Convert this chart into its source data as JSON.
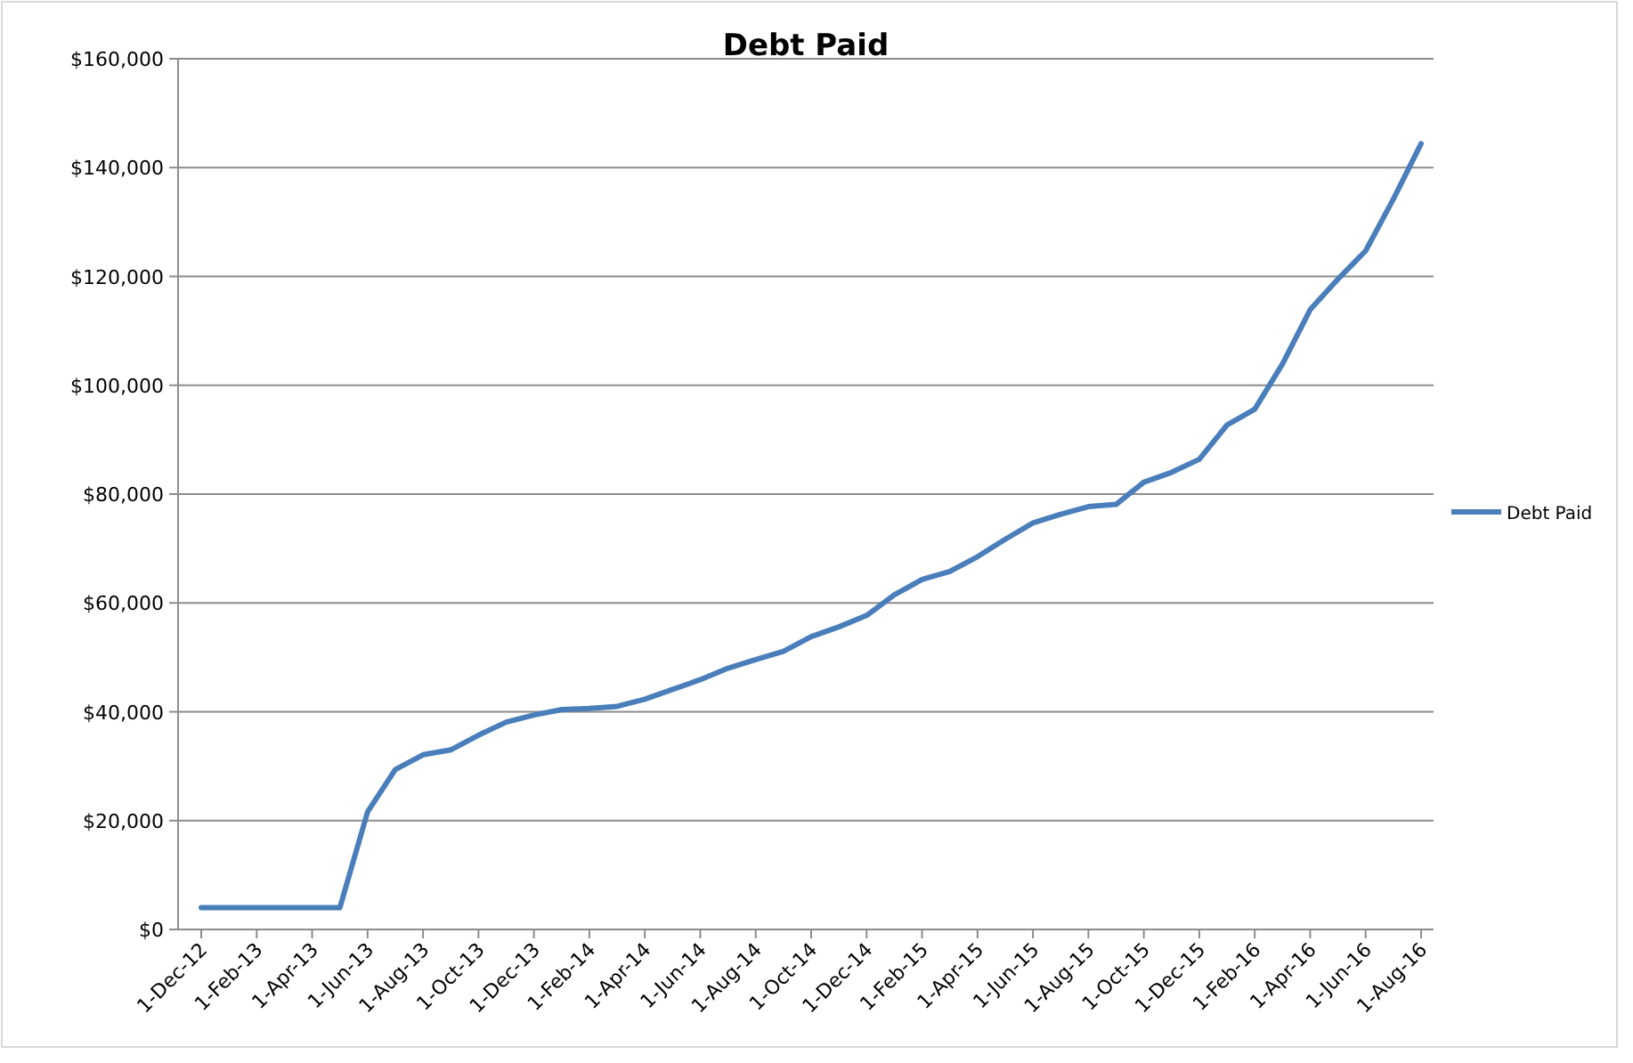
{
  "chart_data": {
    "type": "line",
    "title": "Debt Paid",
    "categories": [
      "1-Dec-12",
      null,
      "1-Feb-13",
      null,
      "1-Apr-13",
      null,
      "1-Jun-13",
      null,
      "1-Aug-13",
      null,
      "1-Oct-13",
      null,
      "1-Dec-13",
      null,
      "1-Feb-14",
      null,
      "1-Apr-14",
      null,
      "1-Jun-14",
      null,
      "1-Aug-14",
      null,
      "1-Oct-14",
      null,
      "1-Dec-14",
      null,
      "1-Feb-15",
      null,
      "1-Apr-15",
      null,
      "1-Jun-15",
      null,
      "1-Aug-15",
      null,
      "1-Oct-15",
      null,
      "1-Dec-15",
      null,
      "1-Feb-16",
      null,
      "1-Apr-16",
      null,
      "1-Jun-16",
      null,
      "1-Aug-16"
    ],
    "series": [
      {
        "name": "Debt Paid",
        "color": "#4a7ebb",
        "values": [
          4000,
          4000,
          4000,
          4000,
          4000,
          4000,
          21600,
          29400,
          32100,
          33000,
          35700,
          38100,
          39400,
          40400,
          40600,
          41000,
          42300,
          44100,
          45900,
          48000,
          49600,
          51100,
          53800,
          55600,
          57700,
          61500,
          64300,
          65800,
          68500,
          71700,
          74700,
          76300,
          77700,
          78100,
          82200,
          84000,
          86400,
          92700,
          95600,
          103900,
          113900,
          119500,
          124700,
          134200,
          144400
        ]
      }
    ],
    "ylim": [
      0,
      160000
    ],
    "yticks": [
      {
        "value": 0,
        "label": "$0"
      },
      {
        "value": 20000,
        "label": "$20,000"
      },
      {
        "value": 40000,
        "label": "$40,000"
      },
      {
        "value": 60000,
        "label": "$60,000"
      },
      {
        "value": 80000,
        "label": "$80,000"
      },
      {
        "value": 100000,
        "label": "$100,000"
      },
      {
        "value": 120000,
        "label": "$120,000"
      },
      {
        "value": 140000,
        "label": "$140,000"
      },
      {
        "value": 160000,
        "label": "$160,000"
      }
    ],
    "grid": "y",
    "legend": "right",
    "marker": "none",
    "line_style": "solid"
  }
}
